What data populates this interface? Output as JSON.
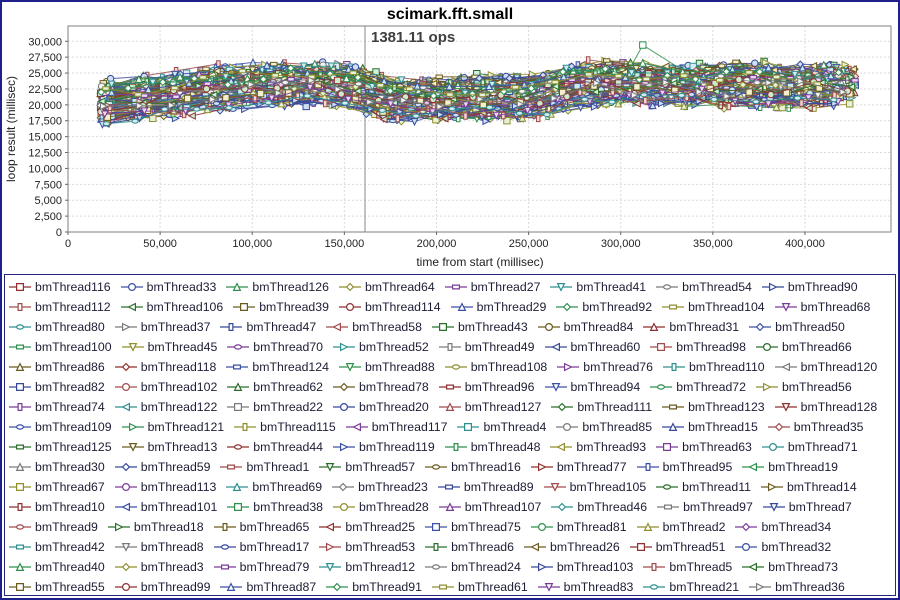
{
  "window": {
    "border_color": "#20208c",
    "legend_border_color": "#26267e"
  },
  "chart_data": {
    "type": "line",
    "title": "scimark.fft.small",
    "annotation": "1381.11 ops",
    "xlabel": "time from start (millisec)",
    "ylabel": "loop result (millisec)",
    "xlim": [
      0,
      446700
    ],
    "ylim": [
      0,
      32400
    ],
    "x_ticks": [
      0,
      50000,
      100000,
      150000,
      200000,
      250000,
      300000,
      350000,
      400000
    ],
    "x_tick_labels": [
      "0",
      "50,000",
      "100,000",
      "150,000",
      "200,000",
      "250,000",
      "300,000",
      "350,000",
      "400,000"
    ],
    "y_ticks": [
      0,
      2500,
      5000,
      7500,
      10000,
      12500,
      15000,
      17500,
      20000,
      22500,
      25000,
      27500,
      30000
    ],
    "y_tick_labels": [
      "0",
      "2,500",
      "5,000",
      "7,500",
      "10,000",
      "12,500",
      "15,000",
      "17,500",
      "20,000",
      "22,500",
      "25,000",
      "27,500",
      "30,000"
    ],
    "grid": true,
    "grid_color": "#d9d9d9",
    "plot_border_color": "#7f7f7f",
    "crosshair_x": 161200,
    "crosshair_color": "#888888",
    "legend_position": "bottom",
    "samples": {
      "x_start_min": 17500,
      "x_start_jitter": 7000,
      "step_mean": 19000,
      "step_jitter": 9000,
      "x_end": 427500
    },
    "envelope": {
      "x": [
        17500,
        55000,
        105000,
        150000,
        175000,
        255000,
        275000,
        427500
      ],
      "center": [
        20300,
        21600,
        23400,
        23200,
        20800,
        21300,
        23200,
        23100
      ]
    },
    "series_offset_spread": 5400,
    "point_noise": 2500,
    "y_clamp": [
      16900,
      27900
    ],
    "spike": {
      "series_index": 90,
      "x": 312000,
      "y": 29400
    },
    "seed": 77771,
    "line_palette": [
      "#8f2f2f",
      "#3a50a5",
      "#2f8f4f",
      "#8f8f30",
      "#7a3b96",
      "#2f8f8f",
      "#7a7a7a",
      "#36489a",
      "#a04a4a",
      "#2a6e2a",
      "#6a5a20"
    ],
    "marker_fills": [
      "#cdeccd",
      "#c8ecec",
      "#ffffff",
      "#e6f2d8",
      "#ead8f0",
      "#d8ecf5",
      "#f5f5f5",
      "#cfe0f5",
      "#f0d8d8",
      "#d0f0e0",
      "#f3f0cf"
    ],
    "shape_cycle": [
      "square",
      "circle",
      "triangle-up",
      "diamond",
      "rect-horizontal",
      "triangle-down",
      "ellipse",
      "triangle-right",
      "rect-vertical",
      "triangle-left"
    ],
    "series": [
      "bmThread116",
      "bmThread33",
      "bmThread126",
      "bmThread64",
      "bmThread27",
      "bmThread41",
      "bmThread54",
      "bmThread90",
      "bmThread112",
      "bmThread106",
      "bmThread39",
      "bmThread114",
      "bmThread29",
      "bmThread92",
      "bmThread104",
      "bmThread68",
      "bmThread80",
      "bmThread37",
      "bmThread47",
      "bmThread58",
      "bmThread43",
      "bmThread84",
      "bmThread31",
      "bmThread50",
      "bmThread100",
      "bmThread45",
      "bmThread70",
      "bmThread52",
      "bmThread49",
      "bmThread60",
      "bmThread98",
      "bmThread66",
      "bmThread86",
      "bmThread118",
      "bmThread124",
      "bmThread88",
      "bmThread108",
      "bmThread76",
      "bmThread110",
      "bmThread120",
      "bmThread82",
      "bmThread102",
      "bmThread62",
      "bmThread78",
      "bmThread96",
      "bmThread94",
      "bmThread72",
      "bmThread56",
      "bmThread74",
      "bmThread122",
      "bmThread22",
      "bmThread20",
      "bmThread127",
      "bmThread111",
      "bmThread123",
      "bmThread128",
      "bmThread109",
      "bmThread121",
      "bmThread115",
      "bmThread117",
      "bmThread4",
      "bmThread85",
      "bmThread15",
      "bmThread35",
      "bmThread125",
      "bmThread13",
      "bmThread44",
      "bmThread119",
      "bmThread48",
      "bmThread93",
      "bmThread63",
      "bmThread71",
      "bmThread30",
      "bmThread59",
      "bmThread1",
      "bmThread57",
      "bmThread16",
      "bmThread77",
      "bmThread95",
      "bmThread19",
      "bmThread67",
      "bmThread113",
      "bmThread69",
      "bmThread23",
      "bmThread89",
      "bmThread105",
      "bmThread11",
      "bmThread14",
      "bmThread10",
      "bmThread101",
      "bmThread38",
      "bmThread28",
      "bmThread107",
      "bmThread46",
      "bmThread97",
      "bmThread7",
      "bmThread9",
      "bmThread18",
      "bmThread65",
      "bmThread25",
      "bmThread75",
      "bmThread81",
      "bmThread2",
      "bmThread34",
      "bmThread42",
      "bmThread8",
      "bmThread17",
      "bmThread53",
      "bmThread6",
      "bmThread26",
      "bmThread51",
      "bmThread32",
      "bmThread40",
      "bmThread3",
      "bmThread79",
      "bmThread12",
      "bmThread24",
      "bmThread103",
      "bmThread5",
      "bmThread73",
      "bmThread55",
      "bmThread99",
      "bmThread87",
      "bmThread91",
      "bmThread61",
      "bmThread83",
      "bmThread21",
      "bmThread36"
    ]
  }
}
